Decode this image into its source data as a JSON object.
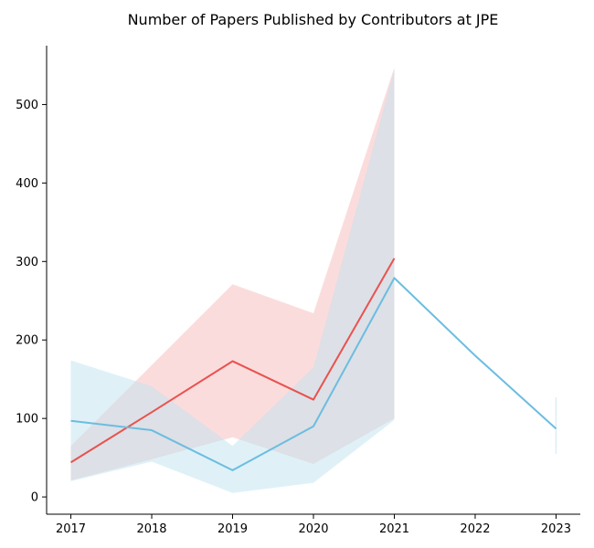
{
  "chart_data": {
    "type": "line",
    "title": "Number of Papers Published by Contributors at JPE",
    "xlabel": "",
    "ylabel": "",
    "xlim": [
      2016.7,
      2023.3
    ],
    "ylim": [
      -22,
      575
    ],
    "x_ticks": [
      "2017",
      "2018",
      "2019",
      "2020",
      "2021",
      "2022",
      "2023"
    ],
    "y_ticks": [
      "0",
      "100",
      "200",
      "300",
      "400",
      "500"
    ],
    "grid": false,
    "legend": "none",
    "series": [
      {
        "color": "#e8524f",
        "band_color": "#f8b9b9",
        "x": [
          2017,
          2018,
          2019,
          2020,
          2021
        ],
        "values": [
          44,
          108,
          173,
          124,
          304
        ],
        "lower": [
          21,
          48,
          76,
          42,
          100
        ],
        "upper": [
          65,
          168,
          271,
          234,
          547
        ]
      },
      {
        "color": "#6bbde0",
        "band_color": "#bfe3f0",
        "x": [
          2017,
          2018,
          2019,
          2020,
          2021,
          2022,
          2023
        ],
        "values": [
          97,
          85,
          34,
          90,
          279,
          180,
          87
        ],
        "lower": [
          20,
          45,
          5,
          18,
          98,
          null,
          55
        ],
        "upper": [
          174,
          141,
          65,
          165,
          545,
          null,
          127
        ]
      }
    ]
  }
}
